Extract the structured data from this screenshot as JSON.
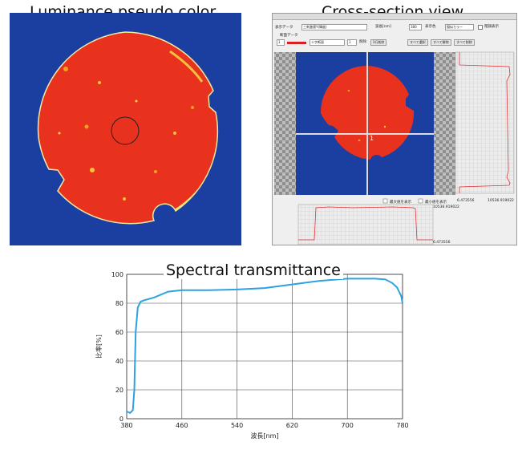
{
  "captions": {
    "luminance": "Luminance pseudo color",
    "cross_section": "Cross-section view",
    "spectral": "Spectral transmittance"
  },
  "colors": {
    "background_blue": "#1a3fa0",
    "sample_red": "#e8321e",
    "curve_blue": "#2aa3e0",
    "profile_red": "#e23030",
    "grid_gray": "#b9b9b9"
  },
  "cross_section_view": {
    "display_data_label": "表示データ",
    "display_data_value": "三刺激値Y(輝度)",
    "wavelength_label": "波長[nm]",
    "wavelength_value": "380",
    "display_color_label": "表示色",
    "display_color_value": "擬似カラー",
    "grayscale_label": "階調表示",
    "section_data_label": "断面データ",
    "section_index": "1",
    "section_line_type": "十字断面",
    "section_count": "1",
    "delete_label": "削除",
    "delete_button": "1行削除",
    "select_all_button": "すべて選択",
    "deselect_all_button": "すべて解除",
    "delete_all_button": "すべて削除",
    "image_label": "1",
    "max_display_label": "最大値を表示",
    "min_display_label": "最小値を表示",
    "right_profile_min": "6.473556",
    "right_profile_max": "10536.919022",
    "bottom_profile_max": "10536.919022",
    "bottom_profile_min": "6.473556"
  },
  "chart_data": {
    "type": "line",
    "title": "Spectral transmittance",
    "xlabel": "波長[nm]",
    "ylabel": "比率[%]",
    "xlim": [
      380,
      780
    ],
    "ylim": [
      0,
      100
    ],
    "xticks": [
      380,
      460,
      540,
      620,
      700,
      780
    ],
    "yticks": [
      0,
      20,
      40,
      60,
      80,
      100
    ],
    "grid": true,
    "series": [
      {
        "x": [
          380,
          385,
          389,
          391,
          393,
          396,
          400,
          405,
          420,
          440,
          460,
          480,
          500,
          540,
          580,
          620,
          660,
          700,
          720,
          740,
          755,
          765,
          772,
          778,
          780
        ],
        "values": [
          5,
          4,
          6,
          20,
          60,
          77,
          81,
          82,
          84,
          88,
          89,
          89,
          89,
          89.5,
          90.5,
          93,
          95.5,
          97,
          97,
          97,
          96.5,
          94,
          91,
          85,
          80
        ]
      }
    ]
  }
}
